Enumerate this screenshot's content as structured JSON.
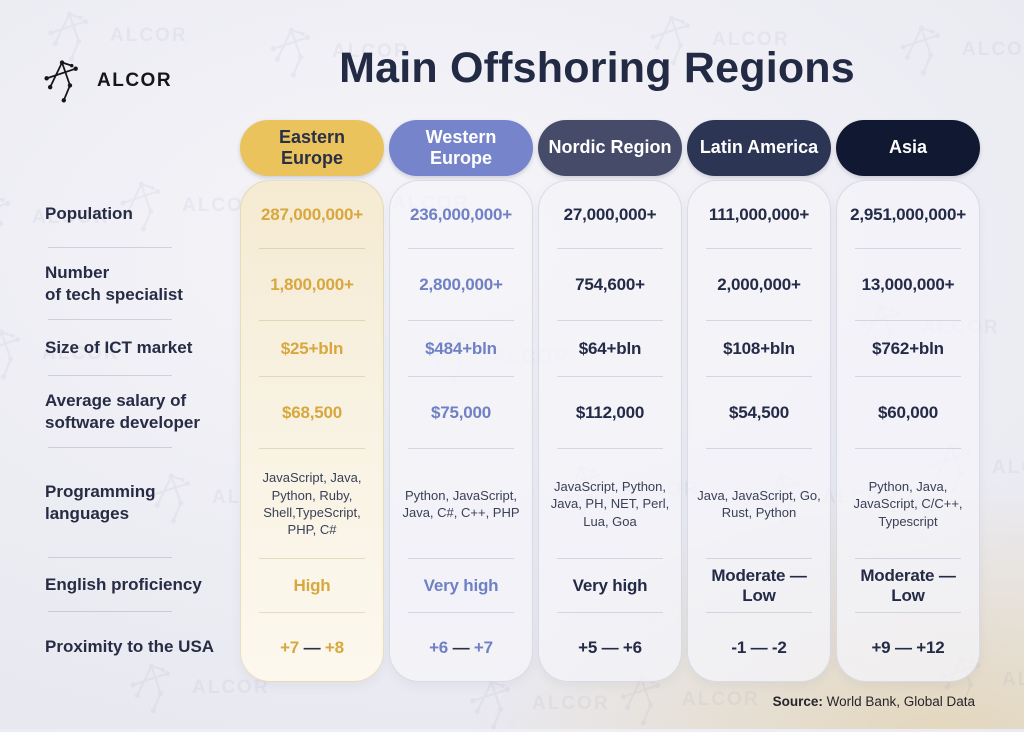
{
  "brand": {
    "name": "ALCOR"
  },
  "title": "Main Offshoring Regions",
  "watermark_text": "ALCOR",
  "source": {
    "label": "Source:",
    "text": " World Bank, Global Data"
  },
  "colors": {
    "title_text": "#222a44",
    "label_text": "#272c45",
    "dark_value": "#242b47",
    "divider": "#aab0c6"
  },
  "chart_data": {
    "type": "table",
    "title": "Main Offshoring Regions",
    "row_labels": [
      "Population",
      "Number\nof tech specialist",
      "Size of ICT market",
      "Average salary of\nsoftware developer",
      "Programming\nlanguages",
      "English proficiency",
      "Proximity to the USA"
    ],
    "columns": [
      {
        "region": "Eastern Europe",
        "header_bg": "#eac35d",
        "header_text": "#2a2f47",
        "accent": "#d8a73d",
        "tinted_card": true,
        "values": [
          "287,000,000+",
          "1,800,000+",
          "$25+bln",
          "$68,500",
          "JavaScript, Java, Python, Ruby, Shell,TypeScript, PHP, C#",
          "High",
          "+7 — +8"
        ]
      },
      {
        "region": "Western Europe",
        "header_bg": "#7684cb",
        "header_text": "#ffffff",
        "accent": "#6f80c5",
        "tinted_card": false,
        "values": [
          "236,000,000+",
          "2,800,000+",
          "$484+bln",
          "$75,000",
          "Python, JavaScript, Java, C#, C++, PHP",
          "Very high",
          "+6 — +7"
        ]
      },
      {
        "region": "Nordic Region",
        "header_bg": "#454b69",
        "header_text": "#ffffff",
        "accent": "",
        "tinted_card": false,
        "values": [
          "27,000,000+",
          "754,600+",
          "$64+bln",
          "$112,000",
          "JavaScript, Python, Java, PH, NET, Perl, Lua, Goa",
          "Very high",
          "+5 — +6"
        ]
      },
      {
        "region": "Latin America",
        "header_bg": "#2c3554",
        "header_text": "#ffffff",
        "accent": "",
        "tinted_card": false,
        "values": [
          "111,000,000+",
          "2,000,000+",
          "$108+bln",
          "$54,500",
          "Java, JavaScript, Go, Rust, Python",
          "Moderate — Low",
          "-1 — -2"
        ]
      },
      {
        "region": "Asia",
        "header_bg": "#111831",
        "header_text": "#ffffff",
        "accent": "",
        "tinted_card": false,
        "values": [
          "2,951,000,000+",
          "13,000,000+",
          "$762+bln",
          "$60,000",
          "Python, Java, JavaScript, C/C++, Typescript",
          "Moderate — Low",
          "+9 — +12"
        ]
      }
    ]
  }
}
